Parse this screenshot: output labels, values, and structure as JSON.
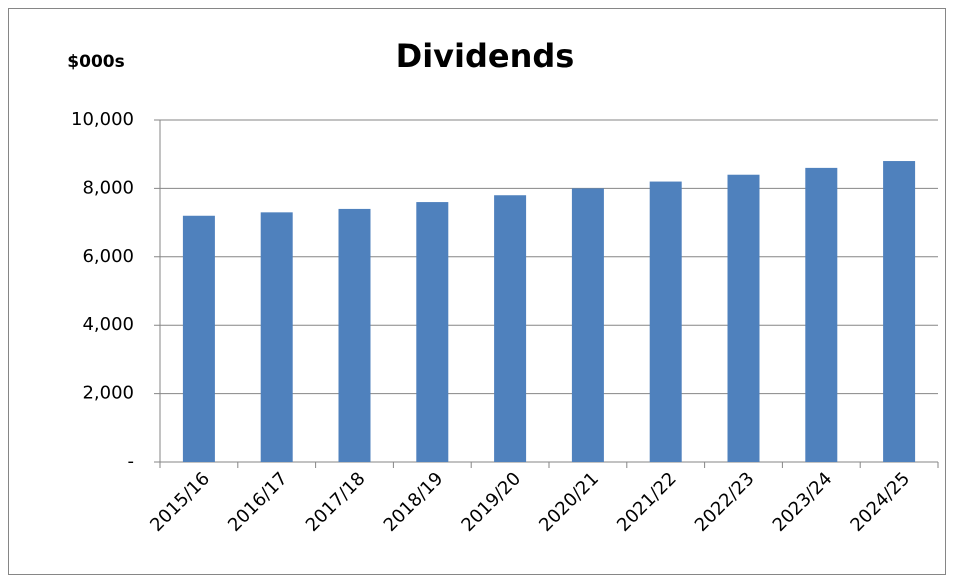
{
  "chart_data": {
    "type": "bar",
    "title": "Dividends",
    "y_axis_label": "$000s",
    "categories": [
      "2015/16",
      "2016/17",
      "2017/18",
      "2018/19",
      "2019/20",
      "2020/21",
      "2021/22",
      "2022/23",
      "2023/24",
      "2024/25"
    ],
    "values": [
      7200,
      7300,
      7400,
      7600,
      7800,
      8000,
      8200,
      8400,
      8600,
      8800
    ],
    "color": "#4f81bd",
    "ylim": [
      0,
      10000
    ],
    "yticks": [
      {
        "value": 0,
        "label": "-"
      },
      {
        "value": 2000,
        "label": "2,000"
      },
      {
        "value": 4000,
        "label": "4,000"
      },
      {
        "value": 6000,
        "label": "6,000"
      },
      {
        "value": 8000,
        "label": "8,000"
      },
      {
        "value": 10000,
        "label": "10,000"
      }
    ],
    "grid": true
  }
}
